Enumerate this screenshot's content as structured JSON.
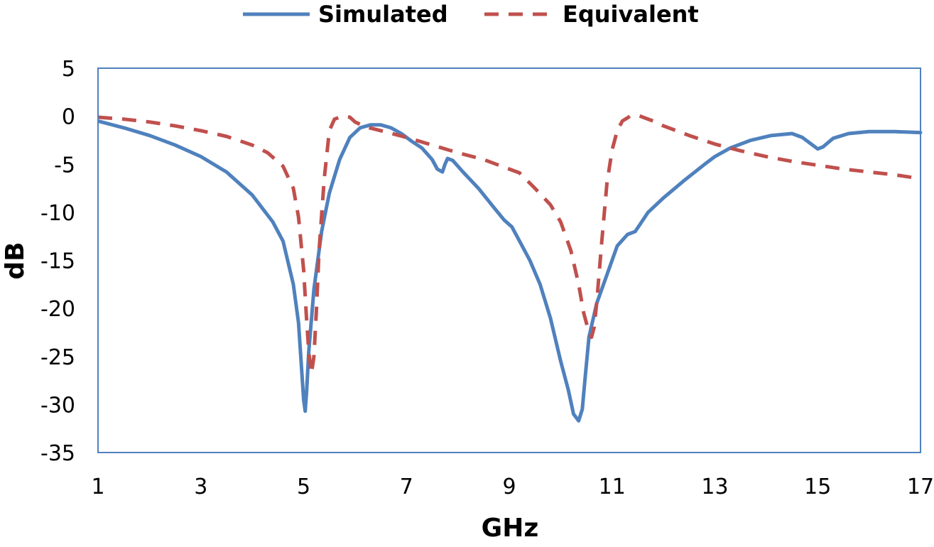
{
  "chart_data": {
    "type": "line",
    "title": "",
    "xlabel": "GHz",
    "ylabel": "dB",
    "xlim": [
      1,
      17
    ],
    "ylim": [
      -35,
      5
    ],
    "xticks": [
      1,
      3,
      5,
      7,
      9,
      11,
      13,
      15,
      17
    ],
    "yticks": [
      5,
      0,
      -5,
      -10,
      -15,
      -20,
      -25,
      -30,
      -35
    ],
    "grid": false,
    "legend": "top-center",
    "series": [
      {
        "name": "Simulated",
        "color": "#4f81bd",
        "style": "solid",
        "x": [
          1.0,
          1.5,
          2.0,
          2.5,
          3.0,
          3.5,
          4.0,
          4.4,
          4.6,
          4.8,
          4.9,
          4.95,
          5.0,
          5.03,
          5.06,
          5.1,
          5.2,
          5.35,
          5.5,
          5.7,
          5.9,
          6.1,
          6.3,
          6.5,
          6.7,
          6.9,
          7.1,
          7.3,
          7.5,
          7.6,
          7.7,
          7.75,
          7.8,
          7.9,
          8.1,
          8.4,
          8.7,
          8.9,
          9.05,
          9.15,
          9.4,
          9.6,
          9.8,
          10.0,
          10.15,
          10.25,
          10.35,
          10.42,
          10.48,
          10.55,
          10.7,
          10.9,
          11.1,
          11.3,
          11.45,
          11.55,
          11.7,
          12.0,
          12.4,
          12.8,
          13.0,
          13.3,
          13.7,
          14.1,
          14.5,
          14.7,
          14.85,
          15.0,
          15.1,
          15.3,
          15.6,
          16.0,
          16.5,
          17.0
        ],
        "y": [
          -0.5,
          -1.2,
          -2.0,
          -3.0,
          -4.2,
          -5.8,
          -8.2,
          -11.0,
          -13.0,
          -17.5,
          -21.5,
          -25.5,
          -29.5,
          -30.7,
          -28.5,
          -24.5,
          -18.0,
          -12.0,
          -8.0,
          -4.5,
          -2.2,
          -1.2,
          -0.9,
          -0.9,
          -1.2,
          -1.8,
          -2.6,
          -3.3,
          -4.5,
          -5.5,
          -5.8,
          -5.0,
          -4.4,
          -4.6,
          -5.8,
          -7.5,
          -9.5,
          -10.8,
          -11.5,
          -12.5,
          -15.0,
          -17.5,
          -21.0,
          -25.5,
          -28.5,
          -31.0,
          -31.7,
          -30.5,
          -27.0,
          -23.0,
          -19.5,
          -16.5,
          -13.5,
          -12.3,
          -12.0,
          -11.2,
          -10.0,
          -8.5,
          -6.7,
          -5.0,
          -4.2,
          -3.3,
          -2.5,
          -2.0,
          -1.8,
          -2.2,
          -2.8,
          -3.4,
          -3.2,
          -2.3,
          -1.8,
          -1.6,
          -1.6,
          -1.7
        ]
      },
      {
        "name": "Equivalent",
        "color": "#c0504d",
        "style": "dashed",
        "x": [
          1.0,
          1.5,
          2.0,
          2.5,
          3.0,
          3.5,
          4.0,
          4.3,
          4.6,
          4.8,
          4.9,
          5.0,
          5.05,
          5.1,
          5.15,
          5.2,
          5.25,
          5.3,
          5.4,
          5.5,
          5.6,
          5.75,
          5.9,
          6.0,
          6.2,
          6.5,
          7.0,
          7.5,
          8.0,
          8.5,
          9.0,
          9.2,
          9.5,
          9.8,
          10.0,
          10.2,
          10.35,
          10.45,
          10.55,
          10.6,
          10.65,
          10.7,
          10.8,
          10.9,
          11.0,
          11.1,
          11.2,
          11.35,
          11.5,
          11.6,
          11.8,
          12.0,
          12.5,
          13.0,
          13.5,
          14.0,
          14.5,
          15.0,
          15.5,
          16.0,
          16.5,
          17.0
        ],
        "y": [
          -0.1,
          -0.3,
          -0.6,
          -1.0,
          -1.5,
          -2.1,
          -3.0,
          -3.8,
          -5.2,
          -7.5,
          -10.5,
          -16.0,
          -20.5,
          -24.5,
          -26.8,
          -25.0,
          -20.0,
          -14.0,
          -6.5,
          -1.5,
          -0.3,
          0.0,
          -0.1,
          -0.6,
          -1.1,
          -1.5,
          -2.2,
          -3.0,
          -3.8,
          -4.5,
          -5.5,
          -5.9,
          -7.5,
          -9.2,
          -11.0,
          -14.0,
          -17.5,
          -20.5,
          -22.5,
          -23.0,
          -22.0,
          -19.5,
          -13.0,
          -7.0,
          -3.5,
          -1.5,
          -0.5,
          0.0,
          0.1,
          -0.1,
          -0.5,
          -1.0,
          -2.0,
          -2.9,
          -3.6,
          -4.2,
          -4.7,
          -5.1,
          -5.5,
          -5.8,
          -6.1,
          -6.5
        ]
      }
    ]
  }
}
